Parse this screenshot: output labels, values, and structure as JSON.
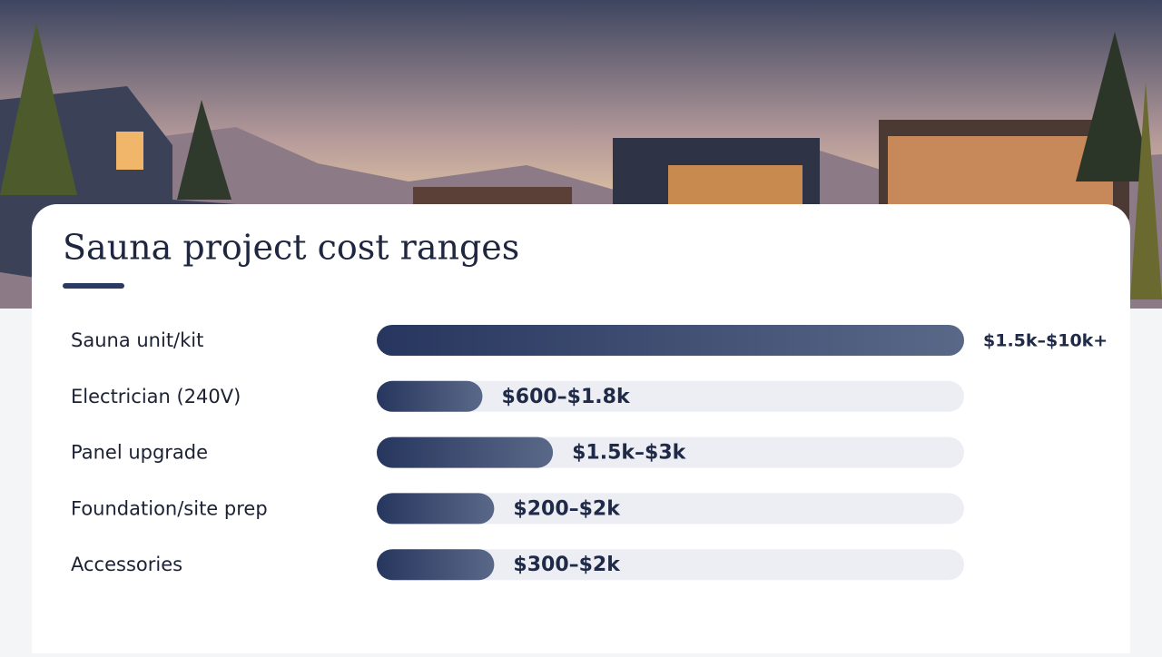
{
  "chart_data": {
    "type": "bar",
    "orientation": "horizontal",
    "title": "Sauna project cost ranges",
    "categories": [
      "Sauna unit/kit",
      "Electrician (240V)",
      "Panel upgrade",
      "Foundation/site prep",
      "Accessories"
    ],
    "values": [
      10000,
      1800,
      3000,
      2000,
      2000
    ],
    "value_labels": [
      "$1.5k–$10k+",
      "$600–$1.8k",
      "$1.5k–$3k",
      "$200–$2k",
      "$300–$2k"
    ],
    "xlim": [
      0,
      10000
    ],
    "color": "#2b3a63"
  }
}
